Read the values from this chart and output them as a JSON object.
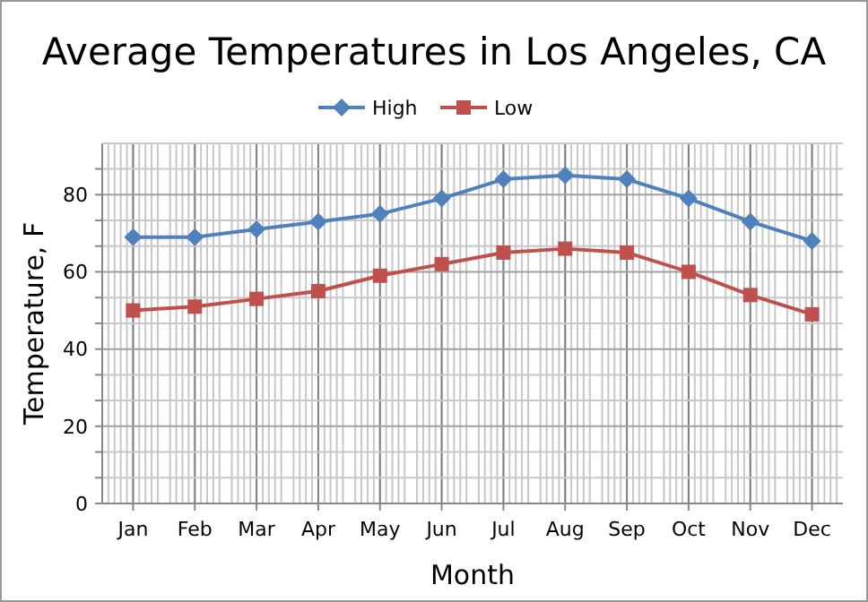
{
  "chart_data": {
    "type": "line",
    "title": "Average Temperatures in Los Angeles, CA",
    "xlabel": "Month",
    "ylabel": "Temperature, F",
    "categories": [
      "Jan",
      "Feb",
      "Mar",
      "Apr",
      "May",
      "Jun",
      "Jul",
      "Aug",
      "Sep",
      "Oct",
      "Nov",
      "Dec"
    ],
    "series": [
      {
        "name": "High",
        "color": "#4f81bd",
        "marker": "diamond",
        "values": [
          69,
          69,
          71,
          73,
          75,
          79,
          84,
          85,
          84,
          79,
          73,
          68
        ]
      },
      {
        "name": "Low",
        "color": "#c0504d",
        "marker": "square",
        "values": [
          50,
          51,
          53,
          55,
          59,
          62,
          65,
          66,
          65,
          60,
          54,
          49
        ]
      }
    ],
    "ylim": [
      0,
      93.3
    ],
    "yticks": [
      0,
      {
        "value": 6.67,
        "label": null
      },
      {
        "value": 13.33,
        "label": null
      },
      20,
      {
        "value": 26.67,
        "label": null
      },
      {
        "value": 33.33,
        "label": null
      },
      40,
      {
        "value": 46.67,
        "label": null
      },
      {
        "value": 53.33,
        "label": null
      },
      60,
      {
        "value": 66.67,
        "label": null
      },
      {
        "value": 73.33,
        "label": null
      },
      80,
      {
        "value": 86.67,
        "label": null
      }
    ],
    "grid": true,
    "legend": "top",
    "line_style": "solid"
  }
}
